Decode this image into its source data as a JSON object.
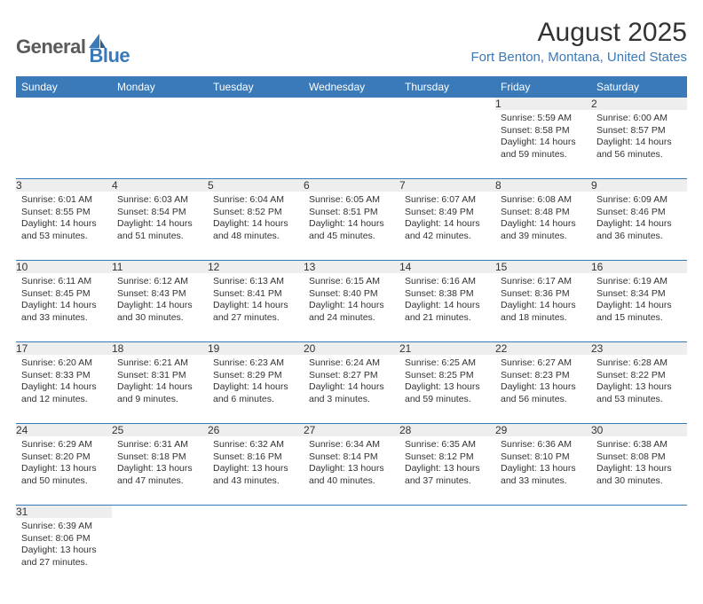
{
  "brand": {
    "part1": "General",
    "part2": "Blue"
  },
  "title": "August 2025",
  "location": "Fort Benton, Montana, United States",
  "colors": {
    "header_bg": "#3a7ab8",
    "header_text": "#ffffff",
    "daynum_bg": "#eeeeee",
    "text": "#333333",
    "accent": "#3a7ab8"
  },
  "weekdays": [
    "Sunday",
    "Monday",
    "Tuesday",
    "Wednesday",
    "Thursday",
    "Friday",
    "Saturday"
  ],
  "weeks": [
    [
      null,
      null,
      null,
      null,
      null,
      {
        "n": "1",
        "sr": "5:59 AM",
        "ss": "8:58 PM",
        "dh": "14",
        "dm": "59"
      },
      {
        "n": "2",
        "sr": "6:00 AM",
        "ss": "8:57 PM",
        "dh": "14",
        "dm": "56"
      }
    ],
    [
      {
        "n": "3",
        "sr": "6:01 AM",
        "ss": "8:55 PM",
        "dh": "14",
        "dm": "53"
      },
      {
        "n": "4",
        "sr": "6:03 AM",
        "ss": "8:54 PM",
        "dh": "14",
        "dm": "51"
      },
      {
        "n": "5",
        "sr": "6:04 AM",
        "ss": "8:52 PM",
        "dh": "14",
        "dm": "48"
      },
      {
        "n": "6",
        "sr": "6:05 AM",
        "ss": "8:51 PM",
        "dh": "14",
        "dm": "45"
      },
      {
        "n": "7",
        "sr": "6:07 AM",
        "ss": "8:49 PM",
        "dh": "14",
        "dm": "42"
      },
      {
        "n": "8",
        "sr": "6:08 AM",
        "ss": "8:48 PM",
        "dh": "14",
        "dm": "39"
      },
      {
        "n": "9",
        "sr": "6:09 AM",
        "ss": "8:46 PM",
        "dh": "14",
        "dm": "36"
      }
    ],
    [
      {
        "n": "10",
        "sr": "6:11 AM",
        "ss": "8:45 PM",
        "dh": "14",
        "dm": "33"
      },
      {
        "n": "11",
        "sr": "6:12 AM",
        "ss": "8:43 PM",
        "dh": "14",
        "dm": "30"
      },
      {
        "n": "12",
        "sr": "6:13 AM",
        "ss": "8:41 PM",
        "dh": "14",
        "dm": "27"
      },
      {
        "n": "13",
        "sr": "6:15 AM",
        "ss": "8:40 PM",
        "dh": "14",
        "dm": "24"
      },
      {
        "n": "14",
        "sr": "6:16 AM",
        "ss": "8:38 PM",
        "dh": "14",
        "dm": "21"
      },
      {
        "n": "15",
        "sr": "6:17 AM",
        "ss": "8:36 PM",
        "dh": "14",
        "dm": "18"
      },
      {
        "n": "16",
        "sr": "6:19 AM",
        "ss": "8:34 PM",
        "dh": "14",
        "dm": "15"
      }
    ],
    [
      {
        "n": "17",
        "sr": "6:20 AM",
        "ss": "8:33 PM",
        "dh": "14",
        "dm": "12"
      },
      {
        "n": "18",
        "sr": "6:21 AM",
        "ss": "8:31 PM",
        "dh": "14",
        "dm": "9"
      },
      {
        "n": "19",
        "sr": "6:23 AM",
        "ss": "8:29 PM",
        "dh": "14",
        "dm": "6"
      },
      {
        "n": "20",
        "sr": "6:24 AM",
        "ss": "8:27 PM",
        "dh": "14",
        "dm": "3"
      },
      {
        "n": "21",
        "sr": "6:25 AM",
        "ss": "8:25 PM",
        "dh": "13",
        "dm": "59"
      },
      {
        "n": "22",
        "sr": "6:27 AM",
        "ss": "8:23 PM",
        "dh": "13",
        "dm": "56"
      },
      {
        "n": "23",
        "sr": "6:28 AM",
        "ss": "8:22 PM",
        "dh": "13",
        "dm": "53"
      }
    ],
    [
      {
        "n": "24",
        "sr": "6:29 AM",
        "ss": "8:20 PM",
        "dh": "13",
        "dm": "50"
      },
      {
        "n": "25",
        "sr": "6:31 AM",
        "ss": "8:18 PM",
        "dh": "13",
        "dm": "47"
      },
      {
        "n": "26",
        "sr": "6:32 AM",
        "ss": "8:16 PM",
        "dh": "13",
        "dm": "43"
      },
      {
        "n": "27",
        "sr": "6:34 AM",
        "ss": "8:14 PM",
        "dh": "13",
        "dm": "40"
      },
      {
        "n": "28",
        "sr": "6:35 AM",
        "ss": "8:12 PM",
        "dh": "13",
        "dm": "37"
      },
      {
        "n": "29",
        "sr": "6:36 AM",
        "ss": "8:10 PM",
        "dh": "13",
        "dm": "33"
      },
      {
        "n": "30",
        "sr": "6:38 AM",
        "ss": "8:08 PM",
        "dh": "13",
        "dm": "30"
      }
    ],
    [
      {
        "n": "31",
        "sr": "6:39 AM",
        "ss": "8:06 PM",
        "dh": "13",
        "dm": "27"
      },
      null,
      null,
      null,
      null,
      null,
      null
    ]
  ],
  "labels": {
    "sunrise": "Sunrise:",
    "sunset": "Sunset:",
    "daylight": "Daylight:",
    "hours": "hours",
    "and": "and",
    "minutes": "minutes."
  }
}
